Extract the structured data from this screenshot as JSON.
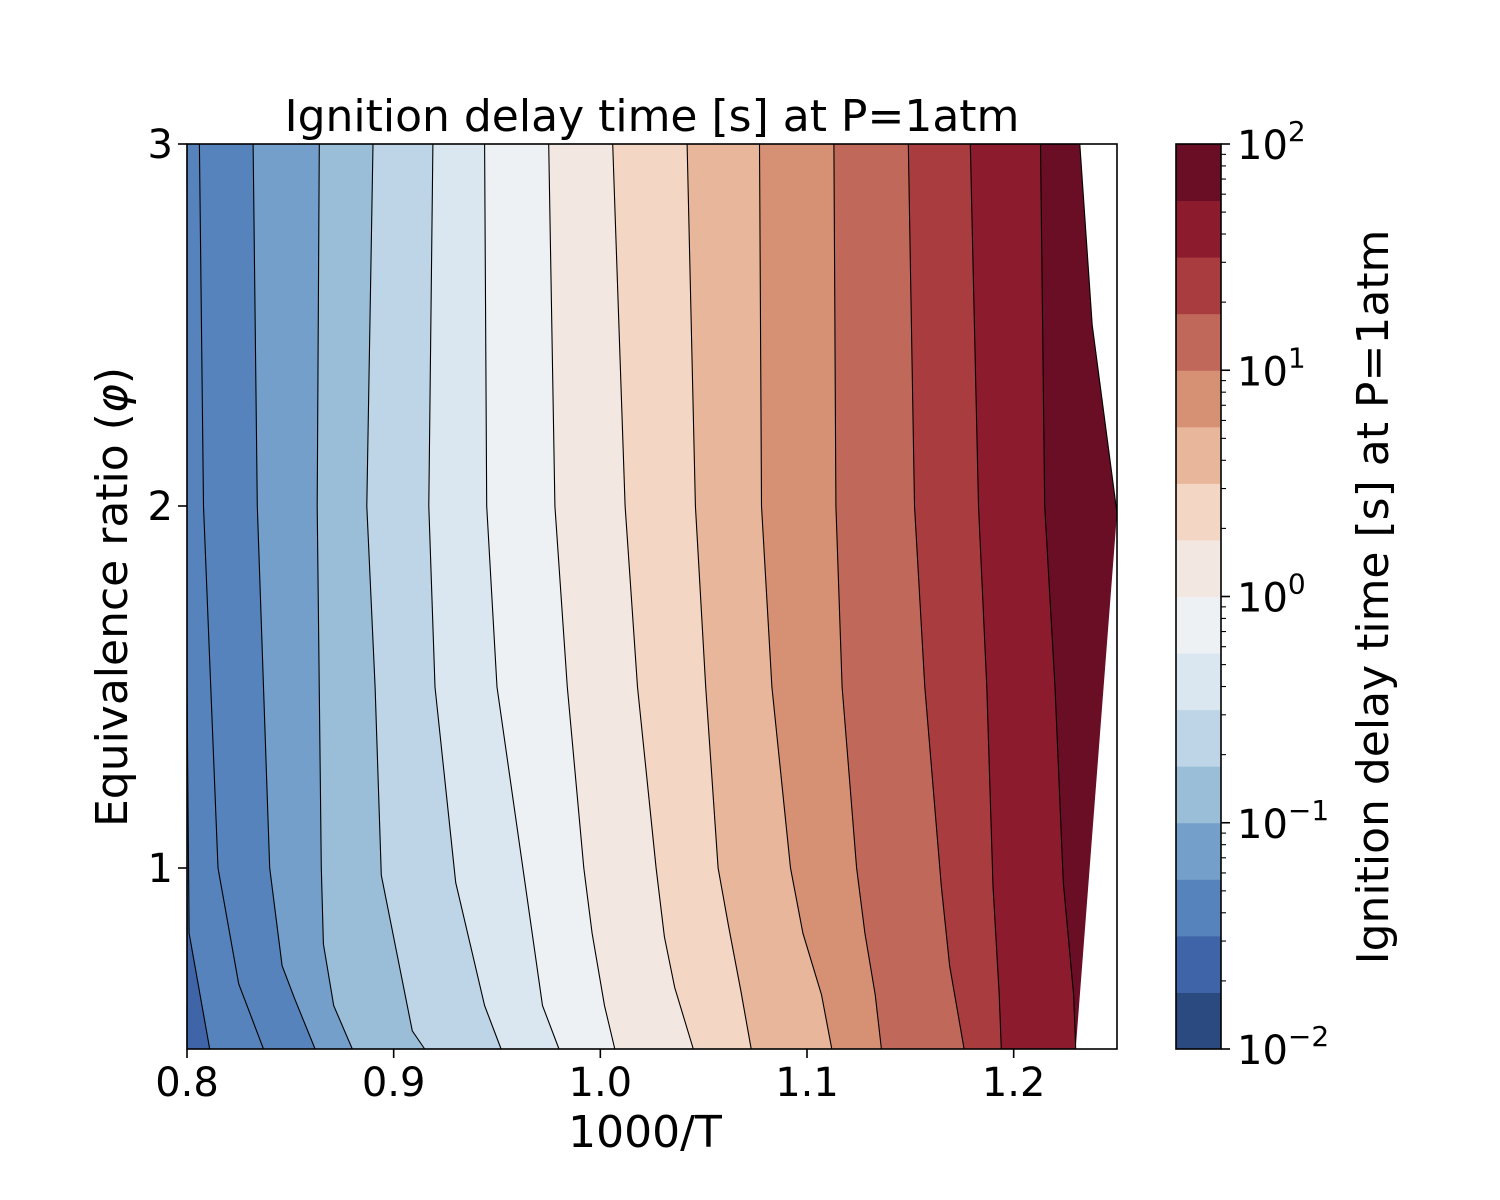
{
  "chart_data": {
    "type": "contour",
    "title": "Ignition delay time [s] at P=1atm",
    "xlabel": "1000/T",
    "ylabel": "Equivalence ratio (",
    "ylabel_symbol": "φ",
    "ylabel_close": ")",
    "colorbar_label": "Ignition delay time [s] at P=1atm",
    "xlim": [
      0.8,
      1.25
    ],
    "ylim": [
      0.5,
      3.0
    ],
    "x_ticks": [
      {
        "value": 0.8,
        "label": "0.8"
      },
      {
        "value": 0.9,
        "label": "0.9"
      },
      {
        "value": 1.0,
        "label": "1.0"
      },
      {
        "value": 1.1,
        "label": "1.1"
      },
      {
        "value": 1.2,
        "label": "1.2"
      }
    ],
    "y_ticks": [
      {
        "value": 1,
        "label": "1"
      },
      {
        "value": 2,
        "label": "2"
      },
      {
        "value": 3,
        "label": "3"
      }
    ],
    "colorbar_scale": "log",
    "colorbar_range": [
      0.01,
      100
    ],
    "colorbar_ticks": [
      {
        "value": 0.01,
        "base": "10",
        "exp": "−2"
      },
      {
        "value": 0.1,
        "base": "10",
        "exp": "−1"
      },
      {
        "value": 1,
        "base": "10",
        "exp": "0"
      },
      {
        "value": 10,
        "base": "10",
        "exp": "1"
      },
      {
        "value": 100,
        "base": "10",
        "exp": "2"
      }
    ],
    "colormap": "RdBu_r",
    "levels_exponent": [
      -2.0,
      -1.75,
      -1.5,
      -1.25,
      -1.0,
      -0.75,
      -0.5,
      -0.25,
      0.0,
      0.25,
      0.5,
      0.75,
      1.0,
      1.25,
      1.5,
      1.75,
      2.0
    ],
    "level_colors": [
      "#2a4a80",
      "#3f65a8",
      "#5683bb",
      "#739fca",
      "#9abdd8",
      "#bdd5e6",
      "#dbe7f0",
      "#edf1f4",
      "#f3e7e1",
      "#f4d6c4",
      "#e8b69a",
      "#d69175",
      "#c0695a",
      "#a83c3f",
      "#8d1b2e",
      "#6a0e26"
    ],
    "contours": [
      {
        "level": -1.5,
        "points": [
          [
            0.8,
            2.87
          ],
          [
            0.8,
            3.0
          ]
        ]
      },
      {
        "level": -1.25,
        "points": [
          [
            0.8,
            0.97
          ],
          [
            0.8,
            0.5
          ]
        ]
      },
      {
        "level": -1.25,
        "points": [
          [
            0.8,
            0.62
          ],
          [
            0.8,
            0.5
          ]
        ]
      },
      {
        "level": -1.0,
        "points": [
          [
            0.811,
            0.5
          ],
          [
            0.801,
            0.82
          ],
          [
            0.8,
            1.5
          ]
        ]
      },
      {
        "level": -1.5,
        "points": [
          [
            0.837,
            0.5
          ],
          [
            0.825,
            0.68
          ],
          [
            0.815,
            1.0
          ],
          [
            0.808,
            2.0
          ],
          [
            0.806,
            3.0
          ]
        ]
      },
      {
        "level": -1.25,
        "points": [
          [
            0.862,
            0.5
          ],
          [
            0.852,
            0.64
          ],
          [
            0.846,
            0.73
          ],
          [
            0.84,
            1.0
          ],
          [
            0.834,
            2.0
          ],
          [
            0.832,
            3.0
          ]
        ]
      },
      {
        "level": -1.0,
        "points": [
          [
            0.88,
            0.5
          ],
          [
            0.871,
            0.62
          ],
          [
            0.866,
            0.79
          ],
          [
            0.865,
            1.0
          ],
          [
            0.863,
            2.0
          ],
          [
            0.864,
            3.0
          ]
        ]
      },
      {
        "level": -0.75,
        "points": [
          [
            0.915,
            0.5
          ],
          [
            0.909,
            0.55
          ],
          [
            0.894,
            0.98
          ],
          [
            0.891,
            1.5
          ],
          [
            0.887,
            2.0
          ],
          [
            0.89,
            3.0
          ]
        ]
      },
      {
        "level": -0.5,
        "points": [
          [
            0.952,
            0.5
          ],
          [
            0.944,
            0.62
          ],
          [
            0.93,
            0.96
          ],
          [
            0.92,
            1.5
          ],
          [
            0.917,
            2.0
          ],
          [
            0.919,
            3.0
          ]
        ]
      },
      {
        "level": -0.25,
        "points": [
          [
            0.98,
            0.5
          ],
          [
            0.972,
            0.62
          ],
          [
            0.963,
            0.98
          ],
          [
            0.95,
            1.5
          ],
          [
            0.945,
            2.0
          ],
          [
            0.944,
            3.0
          ]
        ]
      },
      {
        "level": 0.0,
        "points": [
          [
            1.007,
            0.5
          ],
          [
            1.002,
            0.62
          ],
          [
            0.996,
            0.82
          ],
          [
            0.992,
            1.0
          ],
          [
            0.984,
            1.5
          ],
          [
            0.978,
            2.0
          ],
          [
            0.975,
            3.0
          ]
        ]
      },
      {
        "level": 0.25,
        "points": [
          [
            1.045,
            0.5
          ],
          [
            1.036,
            0.67
          ],
          [
            1.031,
            0.81
          ],
          [
            1.027,
            1.0
          ],
          [
            1.018,
            1.5
          ],
          [
            1.012,
            2.0
          ],
          [
            1.006,
            3.0
          ]
        ]
      },
      {
        "level": 0.5,
        "points": [
          [
            1.073,
            0.5
          ],
          [
            1.068,
            0.66
          ],
          [
            1.062,
            0.84
          ],
          [
            1.057,
            1.0
          ],
          [
            1.051,
            1.5
          ],
          [
            1.046,
            2.0
          ],
          [
            1.042,
            3.0
          ]
        ]
      },
      {
        "level": 0.75,
        "points": [
          [
            1.112,
            0.5
          ],
          [
            1.107,
            0.65
          ],
          [
            1.098,
            0.82
          ],
          [
            1.092,
            1.0
          ],
          [
            1.083,
            1.5
          ],
          [
            1.078,
            2.0
          ],
          [
            1.077,
            3.0
          ]
        ]
      },
      {
        "level": 1.0,
        "points": [
          [
            1.136,
            0.5
          ],
          [
            1.133,
            0.65
          ],
          [
            1.128,
            0.82
          ],
          [
            1.124,
            1.0
          ],
          [
            1.117,
            1.5
          ],
          [
            1.114,
            2.0
          ],
          [
            1.113,
            3.0
          ]
        ]
      },
      {
        "level": 1.25,
        "points": [
          [
            1.176,
            0.5
          ],
          [
            1.169,
            0.73
          ],
          [
            1.165,
            0.95
          ],
          [
            1.157,
            1.5
          ],
          [
            1.152,
            2.0
          ],
          [
            1.149,
            3.0
          ]
        ]
      },
      {
        "level": 1.5,
        "points": [
          [
            1.194,
            0.5
          ],
          [
            1.193,
            0.65
          ],
          [
            1.19,
            0.95
          ],
          [
            1.187,
            1.5
          ],
          [
            1.183,
            2.0
          ],
          [
            1.179,
            3.0
          ]
        ]
      },
      {
        "level": 1.75,
        "points": [
          [
            1.23,
            0.5
          ],
          [
            1.229,
            0.65
          ],
          [
            1.224,
            0.96
          ],
          [
            1.22,
            1.5
          ],
          [
            1.215,
            2.0
          ],
          [
            1.213,
            3.0
          ]
        ]
      },
      {
        "level": 2.0,
        "points": [
          [
            1.25,
            1.98
          ],
          [
            1.238,
            2.5
          ],
          [
            1.232,
            3.0
          ]
        ]
      }
    ]
  }
}
